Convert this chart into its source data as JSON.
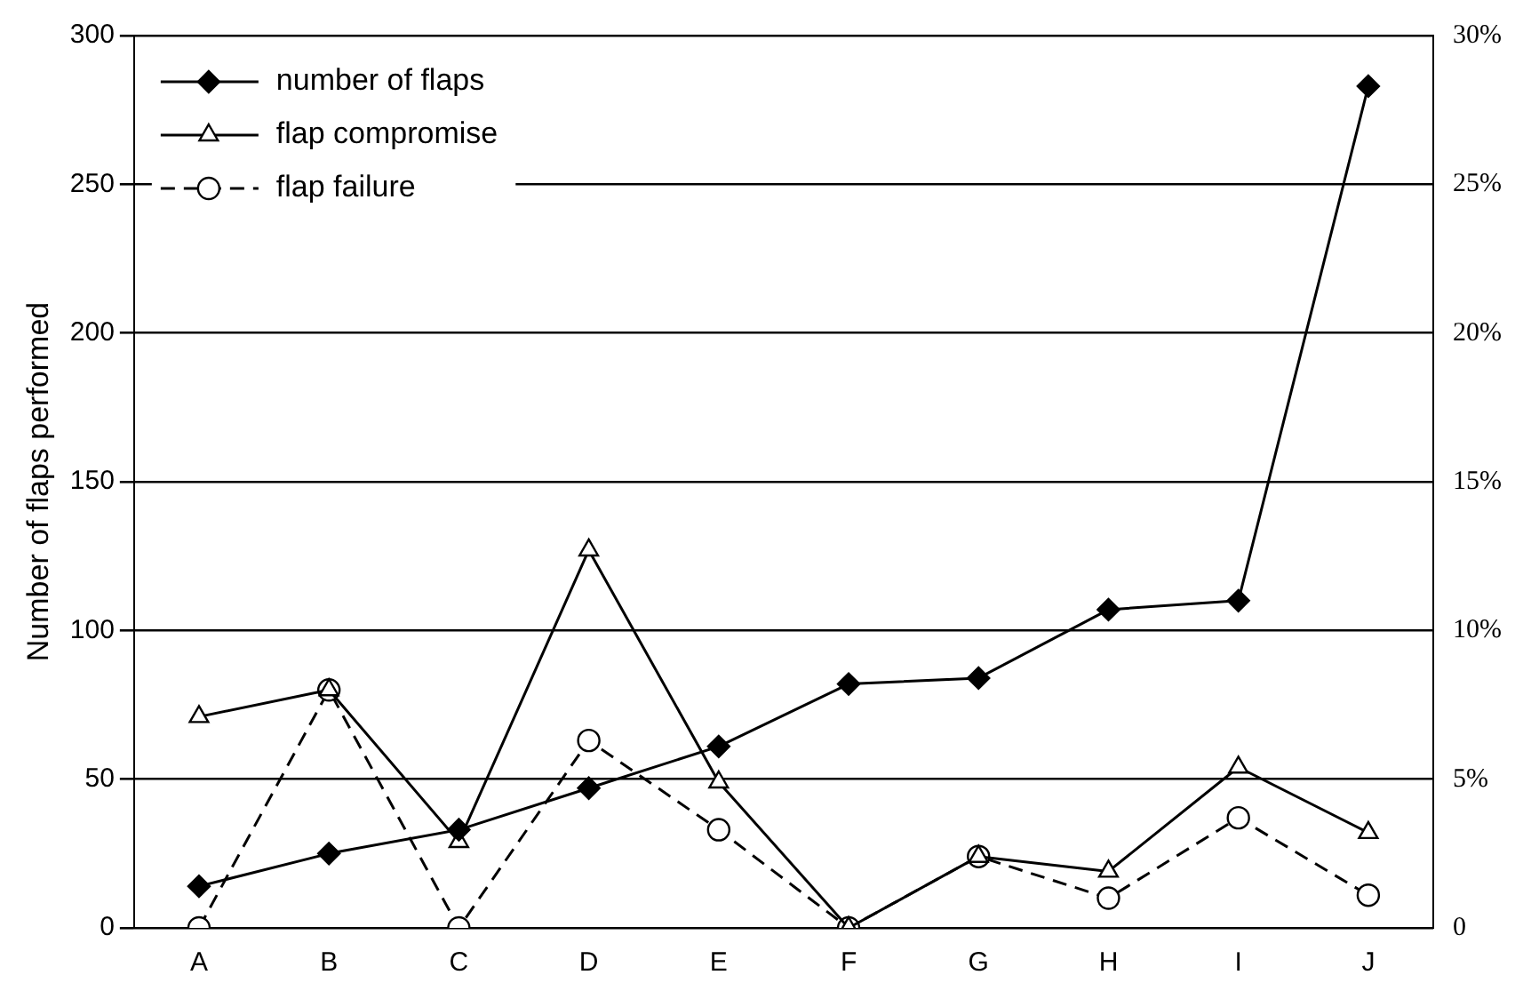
{
  "chart_data": {
    "type": "line",
    "ylabel": "Number of flaps performed",
    "categories": [
      "A",
      "B",
      "C",
      "D",
      "E",
      "F",
      "G",
      "H",
      "I",
      "J"
    ],
    "ylim": [
      0,
      300
    ],
    "yticks": [
      0,
      50,
      100,
      150,
      200,
      250,
      300
    ],
    "y2lim": [
      0,
      30
    ],
    "y2ticks": [
      {
        "value": 0,
        "label": "0"
      },
      {
        "value": 5,
        "label": "5%"
      },
      {
        "value": 10,
        "label": "10%"
      },
      {
        "value": 15,
        "label": "15%"
      },
      {
        "value": 20,
        "label": "20%"
      },
      {
        "value": 25,
        "label": "25%"
      },
      {
        "value": 30,
        "label": "30%"
      }
    ],
    "grid": "y",
    "legend": "top left",
    "series": [
      {
        "name": "number of flaps",
        "color": "#000000",
        "marker": "diamond",
        "line_style": "solid",
        "values": [
          14,
          25,
          33,
          47,
          61,
          82,
          84,
          107,
          110,
          283
        ]
      },
      {
        "name": "flap compromise",
        "color": "#000000",
        "marker": "triangle",
        "line_style": "solid",
        "axis": "y2",
        "values": [
          7.1,
          8,
          2.9,
          12.7,
          4.9,
          0,
          2.4,
          1.9,
          5.4,
          3.2
        ]
      },
      {
        "name": "flap failure",
        "color": "#000000",
        "marker": "circle",
        "line_style": "dashed",
        "axis": "y2",
        "values": [
          0,
          8,
          0,
          6.3,
          3.3,
          0,
          2.4,
          1,
          3.7,
          1.1
        ]
      }
    ]
  }
}
